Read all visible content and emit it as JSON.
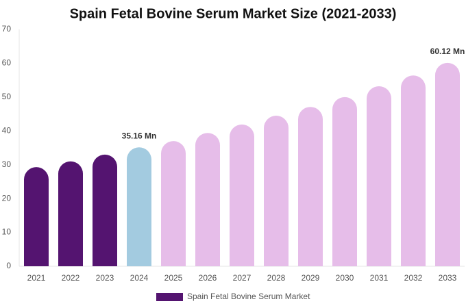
{
  "chart_data": {
    "type": "bar",
    "title": "Spain Fetal Bovine Serum Market Size (2021-2033)",
    "categories": [
      "2021",
      "2022",
      "2023",
      "2024",
      "2025",
      "2026",
      "2027",
      "2028",
      "2029",
      "2030",
      "2031",
      "2032",
      "2033"
    ],
    "series": [
      {
        "name": "Spain Fetal Bovine Serum Market",
        "color": "#541470",
        "values": [
          29.3,
          31.0,
          33.0,
          35.16,
          37.0,
          39.4,
          41.9,
          44.5,
          47.1,
          50.0,
          53.2,
          56.4,
          60.12
        ],
        "value_labels": [
          null,
          null,
          null,
          "35.16 Mn",
          null,
          null,
          null,
          null,
          null,
          null,
          null,
          null,
          "60.12 Mn"
        ],
        "colors": [
          "#541470",
          "#541470",
          "#541470",
          "#a3cbe0",
          "#e6bde9",
          "#e6bde9",
          "#e6bde9",
          "#e6bde9",
          "#e6bde9",
          "#e6bde9",
          "#e6bde9",
          "#e6bde9",
          "#e6bde9"
        ]
      }
    ],
    "ylim": [
      0,
      70
    ],
    "yticks": [
      0,
      10,
      20,
      30,
      40,
      50,
      60,
      70
    ],
    "grid": false
  }
}
